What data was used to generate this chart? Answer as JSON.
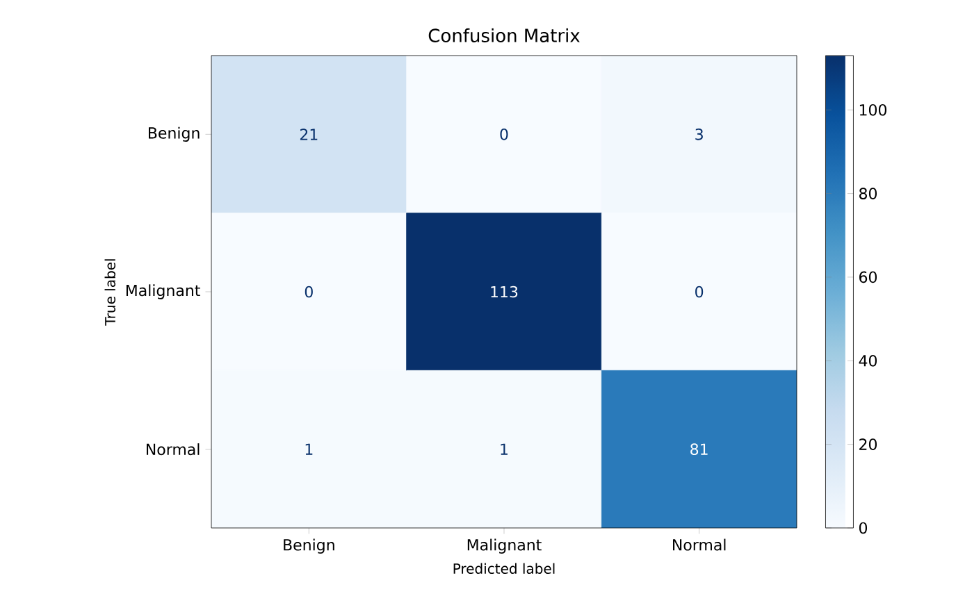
{
  "chart_data": {
    "type": "heatmap",
    "title": "Confusion Matrix",
    "xlabel": "Predicted label",
    "ylabel": "True label",
    "categories": [
      "Benign",
      "Malignant",
      "Normal"
    ],
    "y_categories": [
      "Benign",
      "Malignant",
      "Normal"
    ],
    "cells": [
      [
        21,
        0,
        3
      ],
      [
        0,
        113,
        0
      ],
      [
        1,
        1,
        81
      ]
    ],
    "data_labels": true,
    "clim": [
      0,
      113
    ],
    "cticks": [
      0,
      20,
      40,
      60,
      80,
      100
    ]
  }
}
